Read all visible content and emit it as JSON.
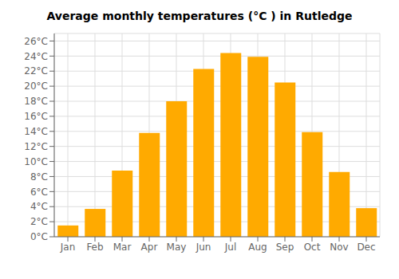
{
  "chart_data": {
    "type": "bar",
    "title": "Average monthly temperatures (°C ) in Rutledge",
    "categories": [
      "Jan",
      "Feb",
      "Mar",
      "Apr",
      "May",
      "Jun",
      "Jul",
      "Aug",
      "Sep",
      "Oct",
      "Nov",
      "Dec"
    ],
    "values": [
      1.5,
      3.7,
      8.8,
      13.8,
      18.0,
      22.3,
      24.4,
      23.9,
      20.5,
      13.9,
      8.6,
      3.8
    ],
    "color": "#FFAA00",
    "ylim": [
      0,
      27
    ],
    "yticks": [
      {
        "value": 0,
        "label": "0°C"
      },
      {
        "value": 2,
        "label": "2°C"
      },
      {
        "value": 4,
        "label": "4°C"
      },
      {
        "value": 6,
        "label": "6°C"
      },
      {
        "value": 8,
        "label": "8°C"
      },
      {
        "value": 10,
        "label": "10°C"
      },
      {
        "value": 12,
        "label": "12°C"
      },
      {
        "value": 14,
        "label": "14°C"
      },
      {
        "value": 16,
        "label": "16°C"
      },
      {
        "value": 18,
        "label": "18°C"
      },
      {
        "value": 20,
        "label": "20°C"
      },
      {
        "value": 22,
        "label": "22°C"
      },
      {
        "value": 24,
        "label": "24°C"
      },
      {
        "value": 26,
        "label": "26°C"
      }
    ],
    "grid": true
  }
}
